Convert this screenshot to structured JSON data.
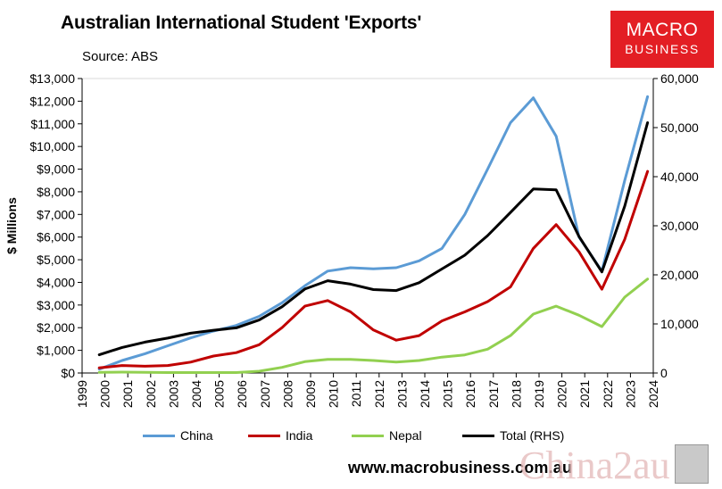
{
  "header": {
    "title": "Australian International Student 'Exports'",
    "source": "Source: ABS"
  },
  "logo": {
    "line1": "MACRO",
    "line2": "BUSINESS"
  },
  "footer": {
    "url": "www.macrobusiness.com.au",
    "watermark": "China2au"
  },
  "chart_data": {
    "type": "line",
    "title": "Australian International Student 'Exports'",
    "ylabel": "$ Millions",
    "ylim": [
      0,
      13000
    ],
    "y2lim": [
      0,
      60000
    ],
    "yticks": [
      "$0",
      "$1,000",
      "$2,000",
      "$3,000",
      "$4,000",
      "$5,000",
      "$6,000",
      "$7,000",
      "$8,000",
      "$9,000",
      "$10,000",
      "$11,000",
      "$12,000",
      "$13,000"
    ],
    "y2ticks": [
      "0",
      "10,000",
      "20,000",
      "30,000",
      "40,000",
      "50,000",
      "60,000"
    ],
    "xlim": [
      1999,
      2024
    ],
    "xticks": [
      "1999",
      "2000",
      "2001",
      "2002",
      "2003",
      "2004",
      "2005",
      "2006",
      "2007",
      "2008",
      "2009",
      "2010",
      "2011",
      "2012",
      "2013",
      "2014",
      "2015",
      "2016",
      "2017",
      "2018",
      "2019",
      "2020",
      "2021",
      "2022",
      "2023",
      "2024"
    ],
    "x": [
      1999.75,
      2000.75,
      2001.75,
      2002.75,
      2003.75,
      2004.75,
      2005.75,
      2006.75,
      2007.75,
      2008.75,
      2009.75,
      2010.75,
      2011.75,
      2012.75,
      2013.75,
      2014.75,
      2015.75,
      2016.75,
      2017.75,
      2018.75,
      2019.75,
      2020.75,
      2021.75,
      2022.75,
      2023.75
    ],
    "series": [
      {
        "name": "China",
        "axis": "left",
        "color": "#5b9bd5",
        "values": [
          170,
          550,
          850,
          1200,
          1550,
          1850,
          2100,
          2500,
          3100,
          3850,
          4500,
          4650,
          4600,
          4650,
          4950,
          5500,
          7000,
          9000,
          11050,
          12150,
          10450,
          6000,
          4500,
          8500,
          12200
        ]
      },
      {
        "name": "India",
        "axis": "left",
        "color": "#c00000",
        "values": [
          230,
          330,
          300,
          330,
          480,
          750,
          900,
          1250,
          2000,
          2950,
          3200,
          2700,
          1900,
          1450,
          1650,
          2300,
          2700,
          3150,
          3800,
          5500,
          6550,
          5350,
          3700,
          5900,
          8900
        ]
      },
      {
        "name": "Nepal",
        "axis": "left",
        "color": "#92d050",
        "values": [
          30,
          40,
          30,
          20,
          20,
          20,
          20,
          80,
          250,
          500,
          600,
          600,
          550,
          480,
          550,
          700,
          800,
          1050,
          1650,
          2600,
          2950,
          2550,
          2050,
          3350,
          4150
        ]
      },
      {
        "name": "Total (RHS)",
        "axis": "right",
        "color": "#000000",
        "values": [
          3700,
          5200,
          6300,
          7100,
          8100,
          8700,
          9200,
          10800,
          13500,
          17100,
          18800,
          18100,
          17000,
          16800,
          18400,
          21200,
          24000,
          28000,
          32700,
          37500,
          37300,
          27800,
          20600,
          34000,
          51000
        ]
      }
    ],
    "legend": "bottom",
    "grid": false
  }
}
